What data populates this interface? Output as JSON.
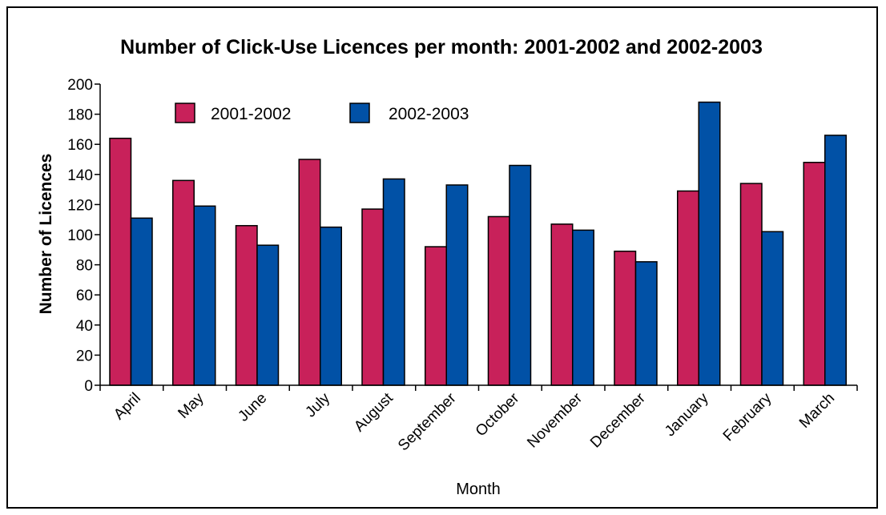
{
  "chart_data": {
    "type": "bar",
    "title": "Number of Click-Use Licences per month: 2001-2002 and 2002-2003",
    "xlabel": "Month",
    "ylabel": "Number of Licences",
    "ylim": [
      0,
      200
    ],
    "yticks": [
      0,
      20,
      40,
      60,
      80,
      100,
      120,
      140,
      160,
      180,
      200
    ],
    "grid": false,
    "legend": "top-left",
    "categories": [
      "April",
      "May",
      "June",
      "July",
      "August",
      "September",
      "October",
      "November",
      "December",
      "January",
      "February",
      "March"
    ],
    "series": [
      {
        "name": "2001-2002",
        "color": "#c8215a",
        "values": [
          164,
          136,
          106,
          150,
          117,
          92,
          112,
          107,
          89,
          129,
          134,
          148
        ]
      },
      {
        "name": "2002-2003",
        "color": "#0151a6",
        "values": [
          111,
          119,
          93,
          105,
          137,
          133,
          146,
          103,
          82,
          188,
          102,
          166
        ]
      }
    ]
  }
}
